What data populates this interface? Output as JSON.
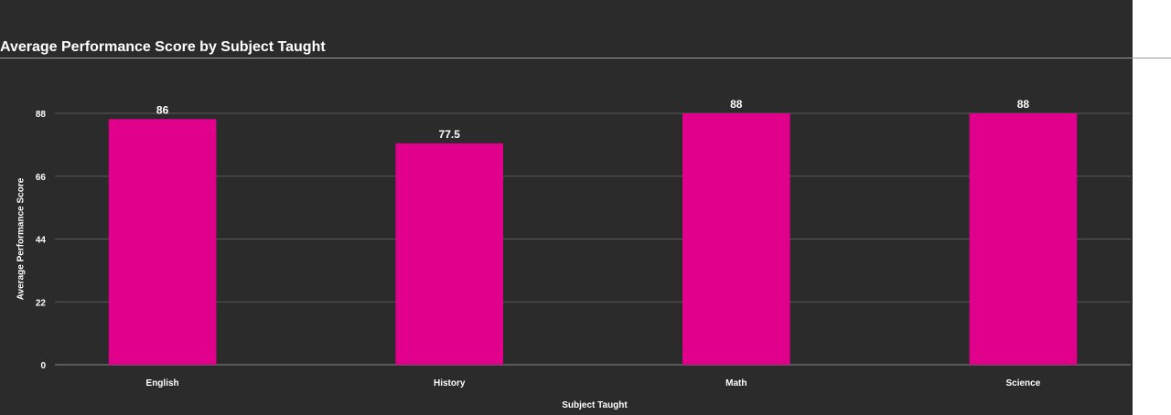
{
  "chart_data": {
    "type": "bar",
    "title": "Average Performance Score by Subject Taught",
    "categories": [
      "English",
      "History",
      "Math",
      "Science"
    ],
    "values": [
      86,
      77.5,
      88,
      88
    ],
    "data_labels": [
      "86",
      "77.5",
      "88",
      "88"
    ],
    "xlabel": "Subject Taught",
    "ylabel": "Average Performance Score",
    "ylim": [
      0,
      88
    ],
    "yticks": [
      0,
      22,
      44,
      66,
      88
    ],
    "grid": true,
    "bar_color": "#e0008c",
    "background": "#2b2b2b"
  }
}
